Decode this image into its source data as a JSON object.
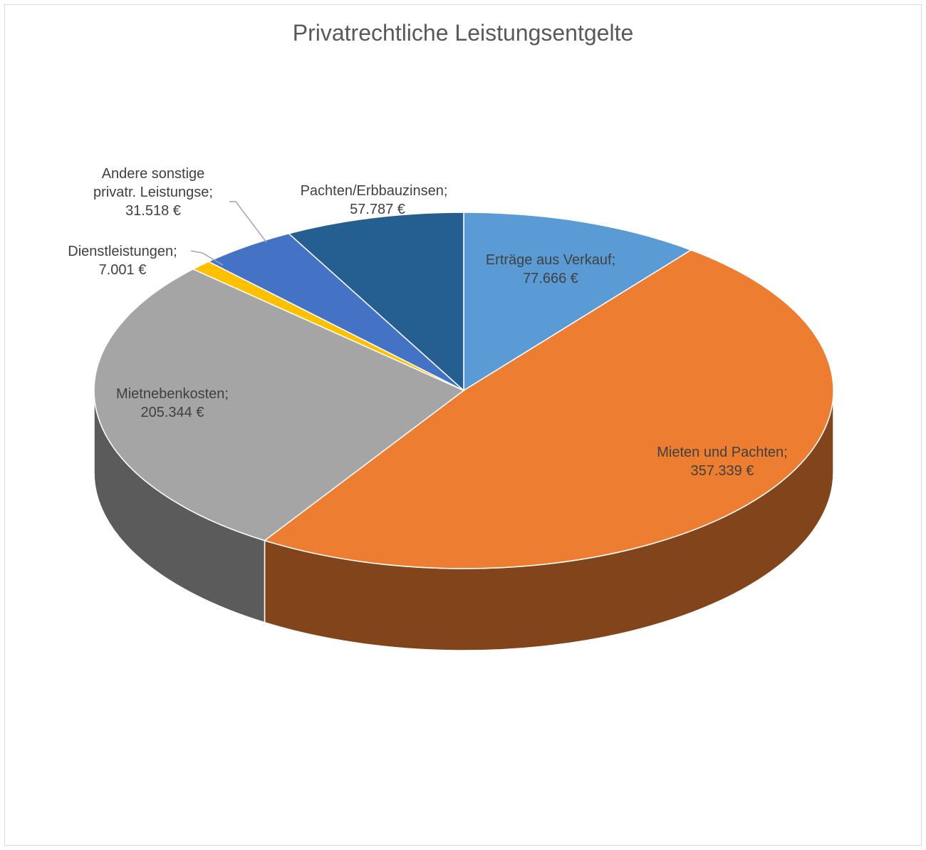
{
  "chart_data": {
    "type": "pie3d",
    "title": "Privatrechtliche Leistungsentgelte",
    "categories": [
      "Erträge aus Verkauf",
      "Mieten und Pachten",
      "Mietnebenkosten",
      "Dienstleistungen",
      "Andere sonstige privatr. Leistungse",
      "Pachten/Erbbauzinsen"
    ],
    "values": [
      77666,
      357339,
      205344,
      7001,
      31518,
      57787
    ],
    "value_labels": [
      "77.666 €",
      "357.339 €",
      "205.344 €",
      "7.001 €",
      "31.518 €",
      "57.787 €"
    ],
    "separator": ";",
    "colors": [
      "#5b9bd5",
      "#ed7d31",
      "#a5a5a5",
      "#ffc000",
      "#4472c4",
      "#255e91"
    ]
  }
}
